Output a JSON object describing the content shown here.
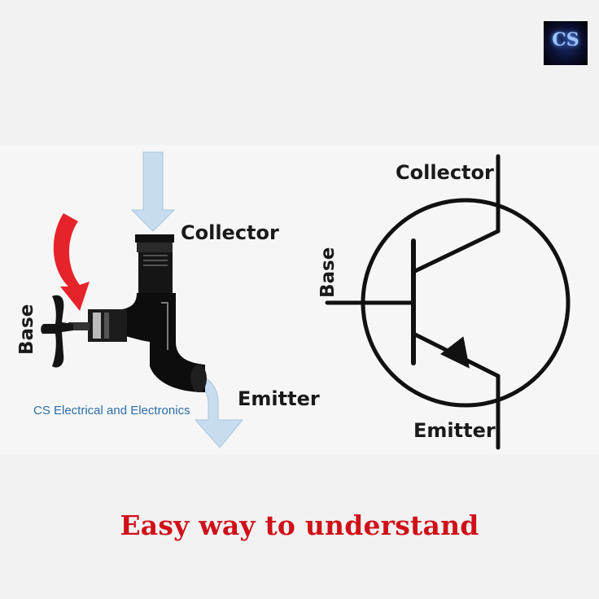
{
  "logo": {
    "text": "CS"
  },
  "faucet": {
    "collector_label": "Collector",
    "emitter_label": "Emitter",
    "base_label": "Base"
  },
  "transistor": {
    "collector_label": "Collector",
    "emitter_label": "Emitter",
    "base_label": "Base"
  },
  "watermark": "CS Electrical and Electronics",
  "caption": "Easy way to understand",
  "colors": {
    "caption": "#d01018",
    "flow_arrow": "#c7ddef",
    "turn_arrow": "#e6232b",
    "watermark": "#2e6fa8"
  }
}
